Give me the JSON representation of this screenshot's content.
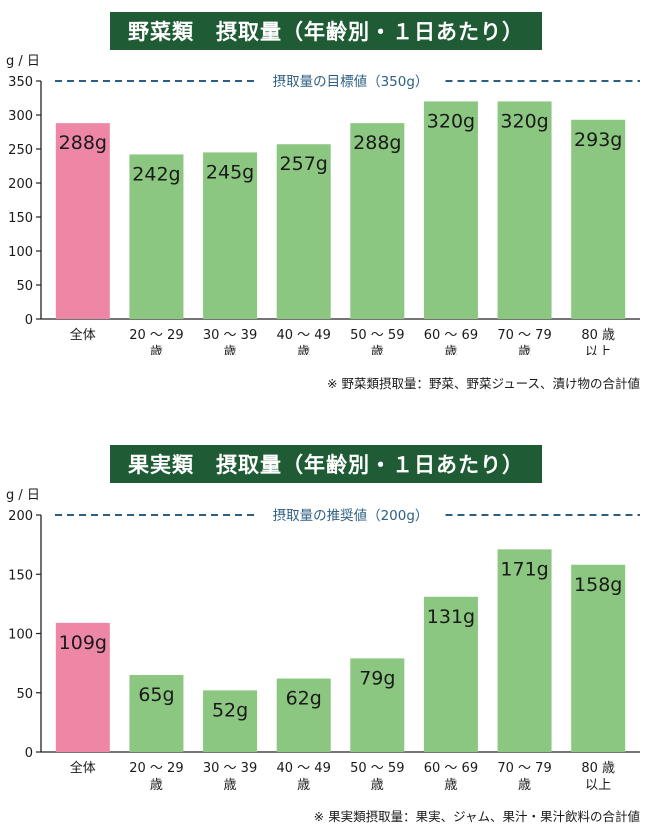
{
  "chart_data": [
    {
      "type": "bar",
      "title": "野菜類　摂取量（年齢別・１日あたり）",
      "unit": "g / 日",
      "categories": [
        [
          "全体"
        ],
        [
          "20 〜 29",
          "歳"
        ],
        [
          "30 〜 39",
          "歳"
        ],
        [
          "40 〜 49",
          "歳"
        ],
        [
          "50 〜 59",
          "歳"
        ],
        [
          "60 〜 69",
          "歳"
        ],
        [
          "70 〜 79",
          "歳"
        ],
        [
          "80 歳",
          "以上"
        ]
      ],
      "values": [
        288,
        242,
        245,
        257,
        288,
        320,
        320,
        293
      ],
      "value_labels": [
        "288g",
        "242g",
        "245g",
        "257g",
        "288g",
        "320g",
        "320g",
        "293g"
      ],
      "ylim": [
        0,
        350
      ],
      "yticks": [
        "0",
        "50",
        "100",
        "150",
        "200",
        "250",
        "300",
        "350"
      ],
      "ytick_values": [
        0,
        50,
        100,
        150,
        200,
        250,
        300,
        350
      ],
      "target": {
        "value": 350,
        "label": "摂取量の目標値（350g）"
      },
      "note": "※ 野菜類摂取量：野菜、野菜ジュース、漬け物の合計値"
    },
    {
      "type": "bar",
      "title": "果実類　摂取量（年齢別・１日あたり）",
      "unit": "g / 日",
      "categories": [
        [
          "全体"
        ],
        [
          "20 〜 29",
          "歳"
        ],
        [
          "30 〜 39",
          "歳"
        ],
        [
          "40 〜 49",
          "歳"
        ],
        [
          "50 〜 59",
          "歳"
        ],
        [
          "60 〜 69",
          "歳"
        ],
        [
          "70 〜 79",
          "歳"
        ],
        [
          "80 歳",
          "以上"
        ]
      ],
      "values": [
        109,
        65,
        52,
        62,
        79,
        131,
        171,
        158
      ],
      "value_labels": [
        "109g",
        "65g",
        "52g",
        "62g",
        "79g",
        "131g",
        "171g",
        "158g"
      ],
      "ylim": [
        0,
        200
      ],
      "yticks": [
        "0",
        "50",
        "100",
        "150",
        "200"
      ],
      "ytick_values": [
        0,
        50,
        100,
        150,
        200
      ],
      "target": {
        "value": 200,
        "label": "摂取量の推奨値（200g）"
      },
      "note": "※ 果実類摂取量：果実、ジャム、果汁・果汁飲料の合計値"
    }
  ],
  "colors": {
    "total_bar": "#ee86a6",
    "age_bar": "#8bc780",
    "target_line": "#2e5f83",
    "title_bg": "#1f5b34"
  }
}
